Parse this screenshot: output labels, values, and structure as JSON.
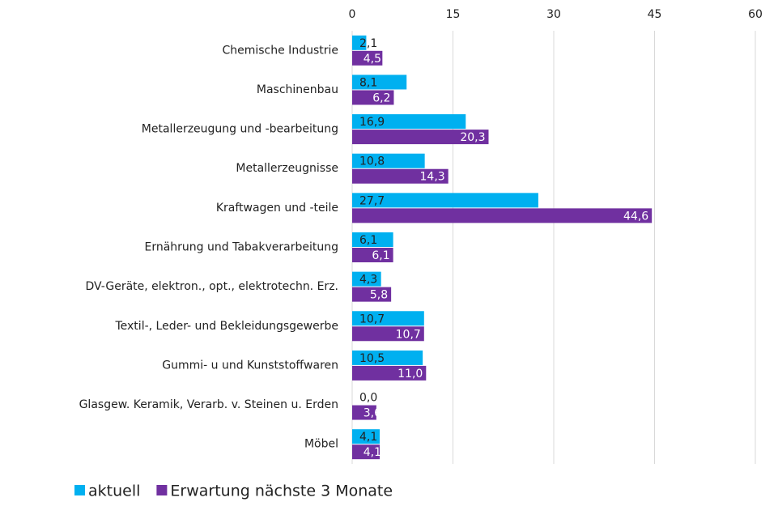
{
  "chart_data": {
    "type": "hbar",
    "categories": [
      "Chemische Industrie",
      "Maschinenbau",
      "Metallerzeugung und -bearbeitung",
      "Metallerzeugnisse",
      "Kraftwagen und -teile",
      "Ernährung und Tabakverarbeitung",
      "DV-Geräte, elektron., opt., elektrotechn. Erz.",
      "Textil-, Leder- und Bekleidungsgewerbe",
      "Gummi- u und Kunststoffwaren",
      "Glasgew. Keramik, Verarb. v. Steinen u. Erden",
      "Möbel"
    ],
    "series": [
      {
        "name": "aktuell",
        "color": "#00b0f0",
        "values": [
          2.1,
          8.1,
          16.9,
          10.8,
          27.7,
          6.1,
          4.3,
          10.7,
          10.5,
          0.0,
          4.1
        ],
        "value_labels": [
          "2,1",
          "8,1",
          "16,9",
          "10,8",
          "27,7",
          "6,1",
          "4,3",
          "10,7",
          "10,5",
          "0,0",
          "4,1"
        ]
      },
      {
        "name": "Erwartung nächste 3 Monate",
        "color": "#7030a0",
        "values": [
          4.5,
          6.2,
          20.3,
          14.3,
          44.6,
          6.1,
          5.8,
          10.7,
          11.0,
          3.6,
          4.1
        ],
        "value_labels": [
          "4,5",
          "6,2",
          "20,3",
          "14,3",
          "44,6",
          "6,1",
          "5,8",
          "10,7",
          "11,0",
          "3,6",
          "4,1"
        ]
      }
    ],
    "xlim": [
      0,
      60
    ],
    "xticks": [
      0,
      15,
      30,
      45,
      60
    ],
    "grid": true,
    "legend": "bottom"
  }
}
